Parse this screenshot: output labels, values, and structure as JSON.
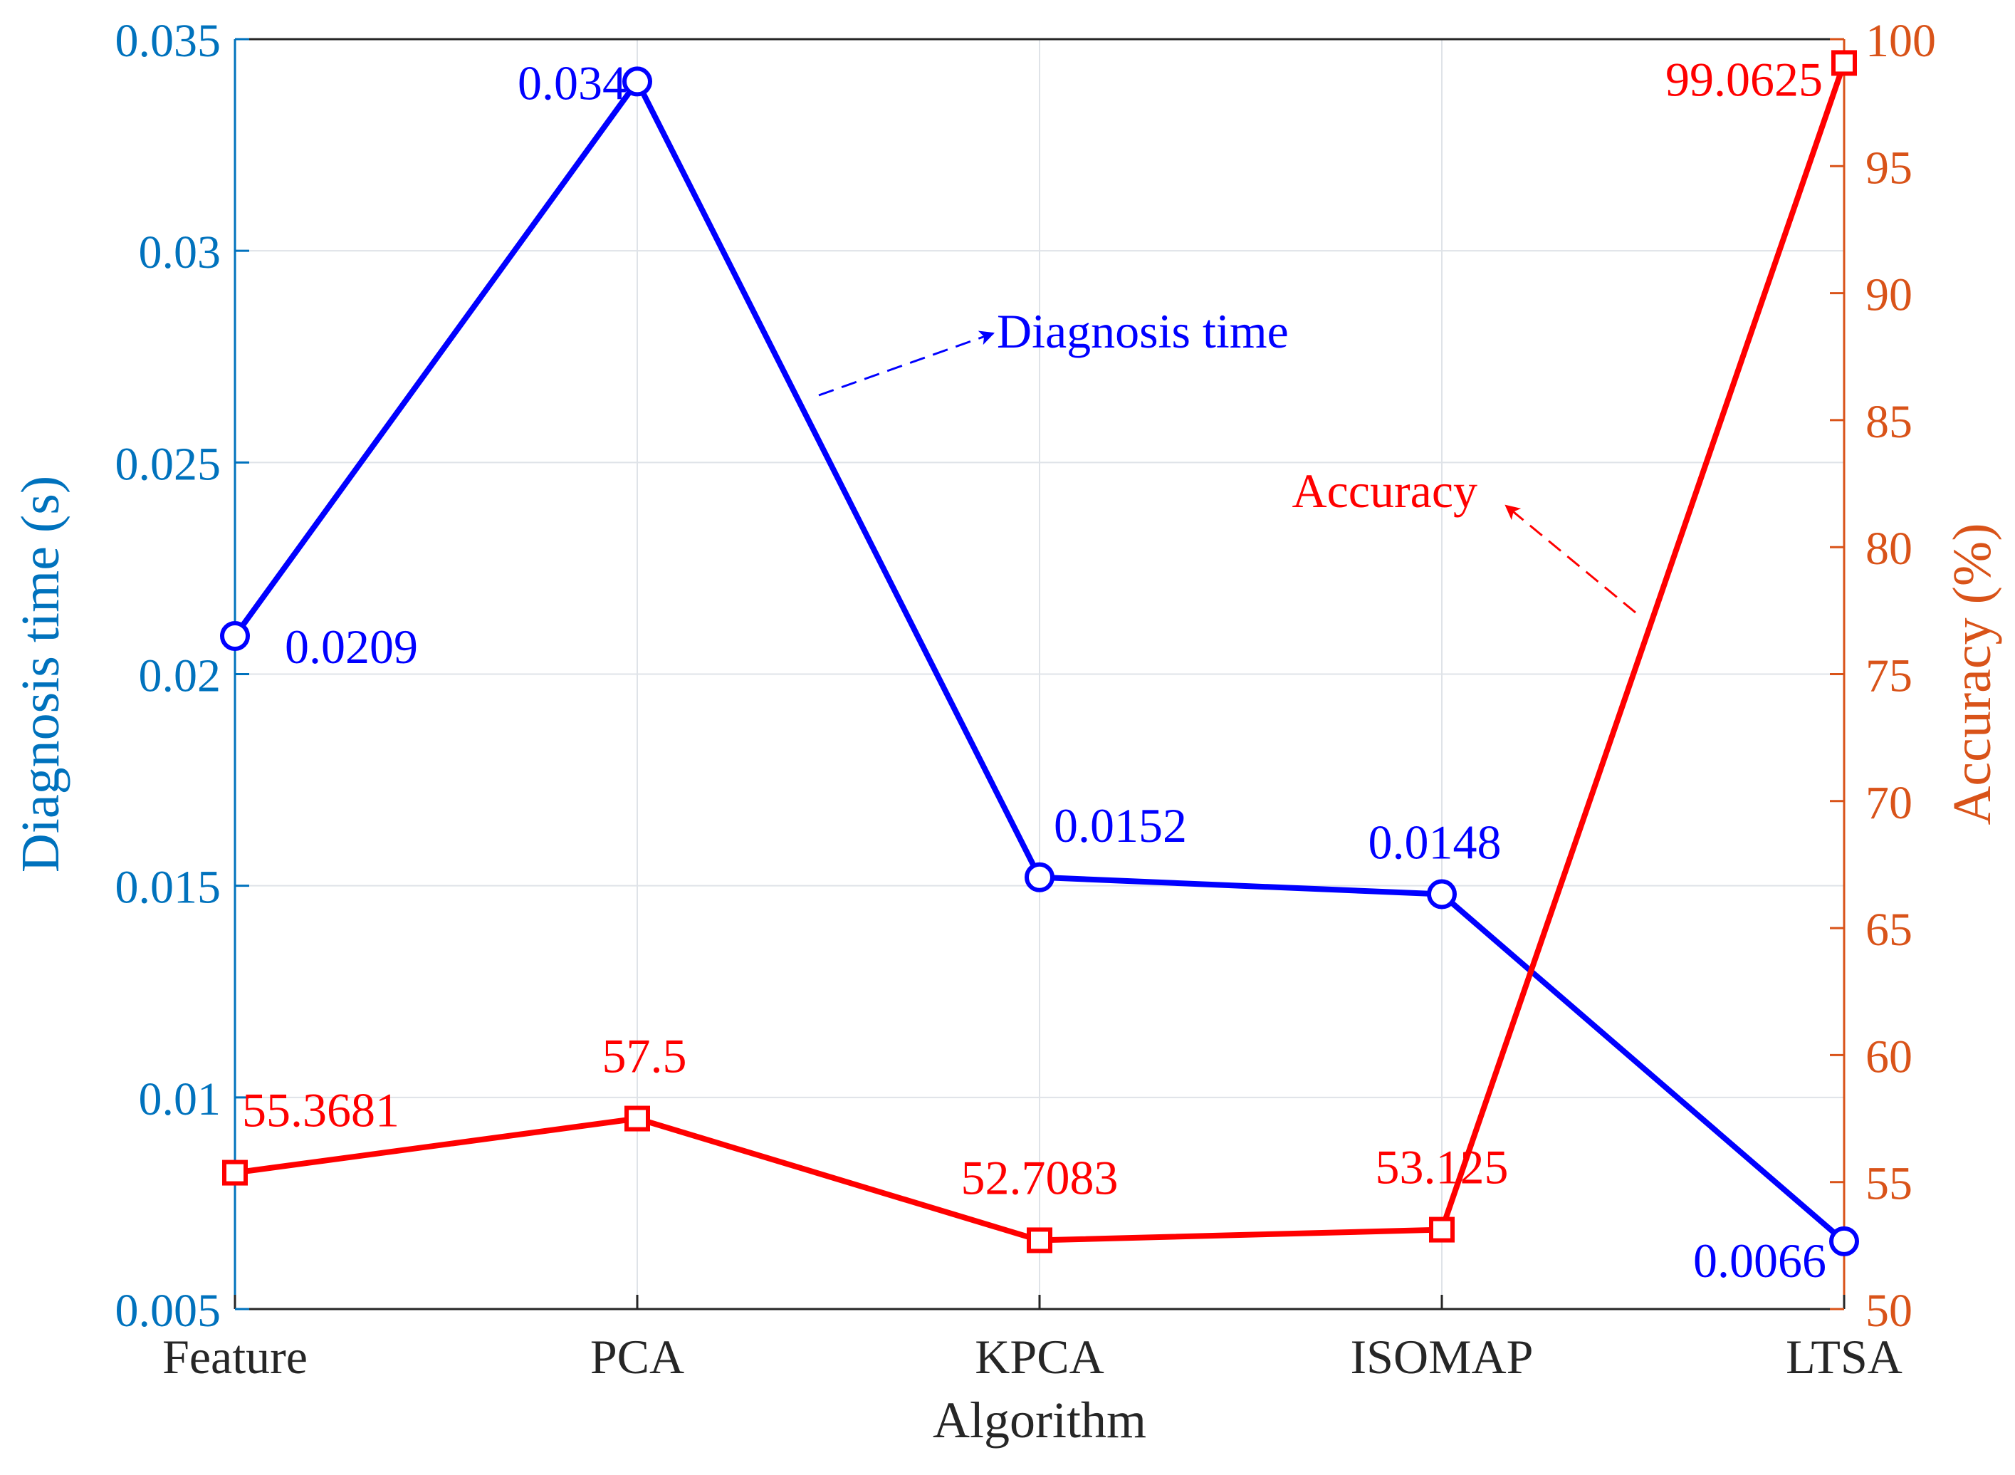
{
  "chart_data": {
    "type": "line",
    "categories": [
      "Feature",
      "PCA",
      "KPCA",
      "ISOMAP",
      "LTSA"
    ],
    "xlabel": "Algorithm",
    "y_left": {
      "label": "Diagnosis time (s)",
      "ylim": [
        0.005,
        0.035
      ],
      "ticks": [
        "0.005",
        "0.01",
        "0.015",
        "0.02",
        "0.025",
        "0.03",
        "0.035"
      ],
      "tick_values": [
        0.005,
        0.01,
        0.015,
        0.02,
        0.025,
        0.03,
        0.035
      ],
      "color": "#0072BD"
    },
    "y_right": {
      "label": "Accuracy (%)",
      "ylim": [
        50,
        100
      ],
      "ticks": [
        "50",
        "55",
        "60",
        "65",
        "70",
        "75",
        "80",
        "85",
        "90",
        "95",
        "100"
      ],
      "tick_values": [
        50,
        55,
        60,
        65,
        70,
        75,
        80,
        85,
        90,
        95,
        100
      ],
      "color": "#D95319"
    },
    "grid": true,
    "series": [
      {
        "name": "Diagnosis time",
        "axis": "left",
        "marker": "circle",
        "color": "#0000FF",
        "values": [
          0.0209,
          0.034,
          0.0152,
          0.0148,
          0.0066
        ],
        "labels": [
          "0.0209",
          "0.034",
          "0.0152",
          "0.0148",
          "0.0066"
        ]
      },
      {
        "name": "Accuracy",
        "axis": "right",
        "marker": "square",
        "color": "#FF0000",
        "values": [
          55.3681,
          57.5,
          52.7083,
          53.125,
          99.0625
        ],
        "labels": [
          "55.3681",
          "57.5",
          "52.7083",
          "53.125",
          "99.0625"
        ]
      }
    ],
    "annotations": [
      {
        "text": "Diagnosis time",
        "color": "#0000FF"
      },
      {
        "text": "Accuracy",
        "color": "#FF0000"
      }
    ]
  }
}
